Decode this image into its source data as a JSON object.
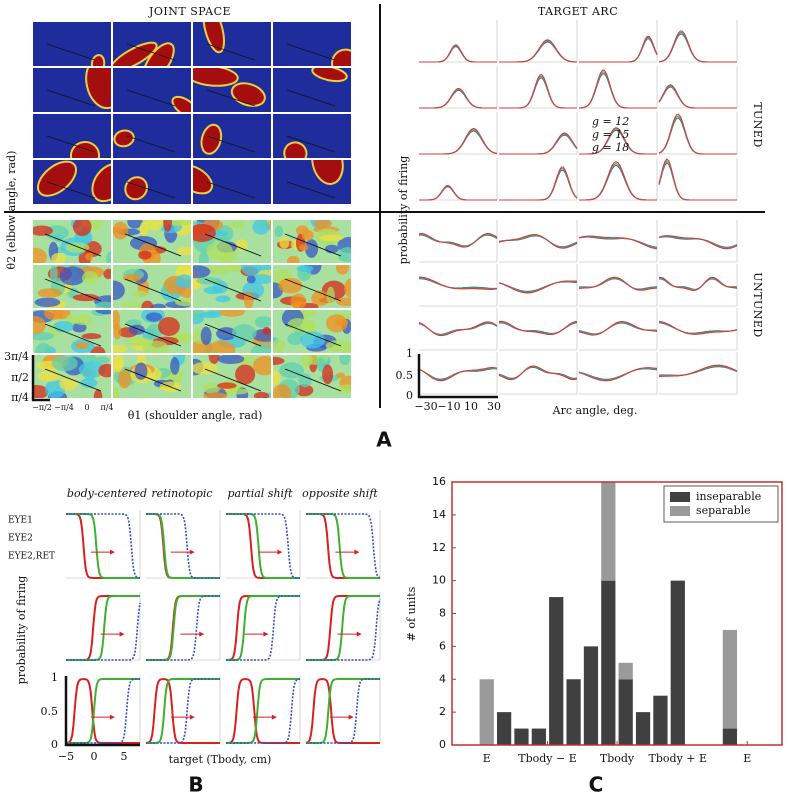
{
  "panel_a": {
    "label": "A",
    "joint_title": "JOINT SPACE",
    "arc_title": "TARGET ARC",
    "joint_ylabel": "θ2 (elbow angle, rad)",
    "joint_xlabel": "θ1 (shoulder angle, rad)",
    "joint_yticks": [
      "3π/4",
      "π/2",
      "π/4"
    ],
    "joint_xticks": [
      "−π/2",
      "−π/4",
      "0",
      "π/4"
    ],
    "arc_ylabel": "probability of firing",
    "arc_xlabel": "Arc angle, deg.",
    "arc_yticks": [
      "1",
      "0.5",
      "0"
    ],
    "arc_xticks": [
      "−30",
      "−10",
      "10",
      "30"
    ],
    "tuned": "TUNED",
    "untuned": "UNTUNED",
    "gains": [
      {
        "name": "g = 12",
        "color": "#3a66c4"
      },
      {
        "name": "g = 15",
        "color": "#55b040"
      },
      {
        "name": "g = 18",
        "color": "#d83a3a"
      }
    ]
  },
  "panel_b": {
    "label": "B",
    "columns": [
      "body-centered",
      "retinotopic",
      "partial shift",
      "opposite shift"
    ],
    "legend": [
      {
        "name": "EYE1",
        "color": "#d82020"
      },
      {
        "name": "EYE2",
        "color": "#40b030"
      },
      {
        "name": "EYE2,RET",
        "color": "#3050c0"
      }
    ],
    "ylabel": "probability of firing",
    "xlabel": "target (Tbody, cm)",
    "yticks": [
      "1",
      "0.5",
      "0"
    ],
    "xticks": [
      "−5",
      "0",
      "5"
    ]
  },
  "chart_data": {
    "type": "stacked_bar",
    "label": "C",
    "ylabel": "# of units",
    "x": [
      0,
      1,
      2,
      3,
      4,
      5,
      6,
      7,
      8,
      9,
      10,
      11,
      12,
      13,
      14
    ],
    "series": [
      {
        "name": "inseparable",
        "color": "#404040",
        "values": [
          0,
          2,
          1,
          1,
          9,
          4,
          6,
          10,
          4,
          2,
          3,
          10,
          0,
          0,
          1
        ]
      },
      {
        "name": "separable",
        "color": "#9a9a9a",
        "values": [
          4,
          0,
          0,
          0,
          0,
          0,
          0,
          6,
          1,
          0,
          0,
          0,
          0,
          0,
          6
        ]
      }
    ],
    "xlim": [
      -2,
      17
    ],
    "ylim": [
      0,
      16
    ],
    "yticks": [
      0,
      2,
      4,
      6,
      8,
      10,
      12,
      14,
      16
    ],
    "xticks": [
      {
        "value": 0,
        "label": "E"
      },
      {
        "value": 3.5,
        "label": "Tbody − E"
      },
      {
        "value": 7.5,
        "label": "Tbody"
      },
      {
        "value": 11,
        "label": "Tbody + E"
      },
      {
        "value": 15,
        "label": "E"
      }
    ],
    "legend": "upper right",
    "frame_color": "#c03030"
  }
}
